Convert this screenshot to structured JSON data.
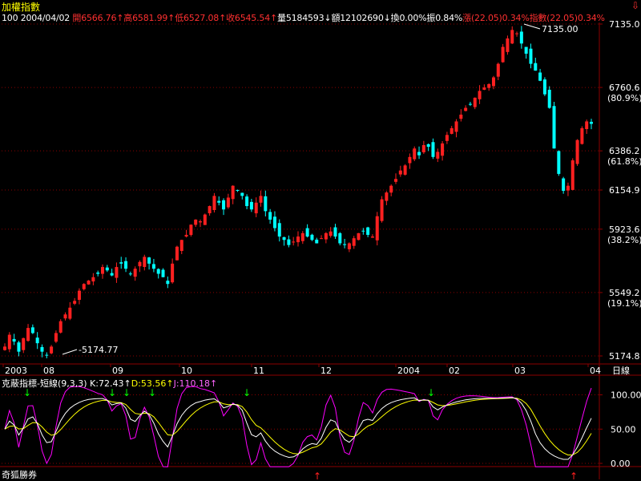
{
  "header": {
    "title": "加權指數",
    "quote": [
      {
        "text": "100 2004/04/02 ",
        "color": "w"
      },
      {
        "text": "開6566.76↑",
        "color": "r"
      },
      {
        "text": "高6581.99↑",
        "color": "r"
      },
      {
        "text": "低6527.08↑",
        "color": "r"
      },
      {
        "text": "收6545.54↑",
        "color": "r"
      },
      {
        "text": "量5184593↓",
        "color": "w"
      },
      {
        "text": "額12102690↓",
        "color": "w"
      },
      {
        "text": "換0.00%",
        "color": "w"
      },
      {
        "text": "振0.84%",
        "color": "w"
      },
      {
        "text": "漲(22.05)0.34%",
        "color": "r"
      },
      {
        "text": "指數(22.05)0.34%",
        "color": "r"
      }
    ]
  },
  "kd_header": [
    {
      "text": "克蔽指標-短線(9,3,3) ",
      "color": "w"
    },
    {
      "text": "K:72.43↑",
      "color": "w"
    },
    {
      "text": "D:53.56↑",
      "color": "y"
    },
    {
      "text": "J:110.18↑",
      "color": "m"
    }
  ],
  "footer": {
    "brand": "奇狐勝券"
  },
  "colors": {
    "up": "#ff2020",
    "down": "#00ffff",
    "grid": "#8b0000",
    "k": "#ffffff",
    "d": "#ffff00",
    "j": "#ff00ff",
    "buy_arrow": "#00ff00",
    "sell_arrow": "#ff2020"
  },
  "chart_data": [
    {
      "type": "candlestick",
      "title": "加權指數",
      "y_ticks": [
        {
          "value": 7135.0,
          "label": "7135.0",
          "pct": ""
        },
        {
          "value": 6760.6,
          "label": "6760.6",
          "pct": "(80.9%)"
        },
        {
          "value": 6386.2,
          "label": "6386.2",
          "pct": "(61.8%)"
        },
        {
          "value": 6154.9,
          "label": "6154.9",
          "pct": ""
        },
        {
          "value": 5923.6,
          "label": "5923.6",
          "pct": "(38.2%)"
        },
        {
          "value": 5549.2,
          "label": "5549.2",
          "pct": "(19.1%)"
        },
        {
          "value": 5174.8,
          "label": "5174.8",
          "pct": ""
        }
      ],
      "ylim": [
        5174.8,
        7135.0
      ],
      "x_ticks": [
        "2003",
        "08",
        "09",
        "10",
        "11",
        "12",
        "2004",
        "02",
        "03",
        "04"
      ],
      "x_unit_label": "日線",
      "annotations": [
        {
          "label": "5174.77",
          "value": 5174.77,
          "type": "low"
        },
        {
          "label": "7135.00",
          "value": 7135.0,
          "type": "high"
        }
      ],
      "close_series": [
        5230,
        5300,
        5260,
        5200,
        5280,
        5340,
        5310,
        5250,
        5200,
        5180,
        5230,
        5310,
        5380,
        5420,
        5460,
        5500,
        5560,
        5600,
        5620,
        5640,
        5660,
        5700,
        5680,
        5650,
        5700,
        5720,
        5690,
        5660,
        5690,
        5730,
        5760,
        5720,
        5690,
        5660,
        5640,
        5600,
        5720,
        5820,
        5860,
        5890,
        5950,
        5980,
        5970,
        6010,
        6060,
        6120,
        6080,
        6040,
        6110,
        6180,
        6150,
        6120,
        6060,
        6040,
        6080,
        6120,
        6030,
        5980,
        5930,
        5880,
        5860,
        5830,
        5850,
        5880,
        5900,
        5880,
        5860,
        5840,
        5870,
        5900,
        5910,
        5880,
        5840,
        5830,
        5840,
        5870,
        5900,
        5910,
        5890,
        5880,
        6000,
        6100,
        6140,
        6180,
        6220,
        6270,
        6300,
        6350,
        6400,
        6360,
        6420,
        6410,
        6350,
        6380,
        6430,
        6480,
        6520,
        6560,
        6600,
        6640,
        6660,
        6700,
        6740,
        6760,
        6780,
        6820,
        6900,
        7000,
        7050,
        7100,
        7080,
        7020,
        6960,
        6900,
        6860,
        6800,
        6720,
        6640,
        6400,
        6250,
        6150,
        6180,
        6330,
        6450,
        6520,
        6560,
        6545.54
      ],
      "kd": {
        "ylim": [
          0,
          110
        ],
        "y_ticks": [
          "100.00",
          "50.00",
          "0.00"
        ],
        "k_last": 72.43,
        "d_last": 53.56,
        "j_last": 110.18
      }
    }
  ]
}
